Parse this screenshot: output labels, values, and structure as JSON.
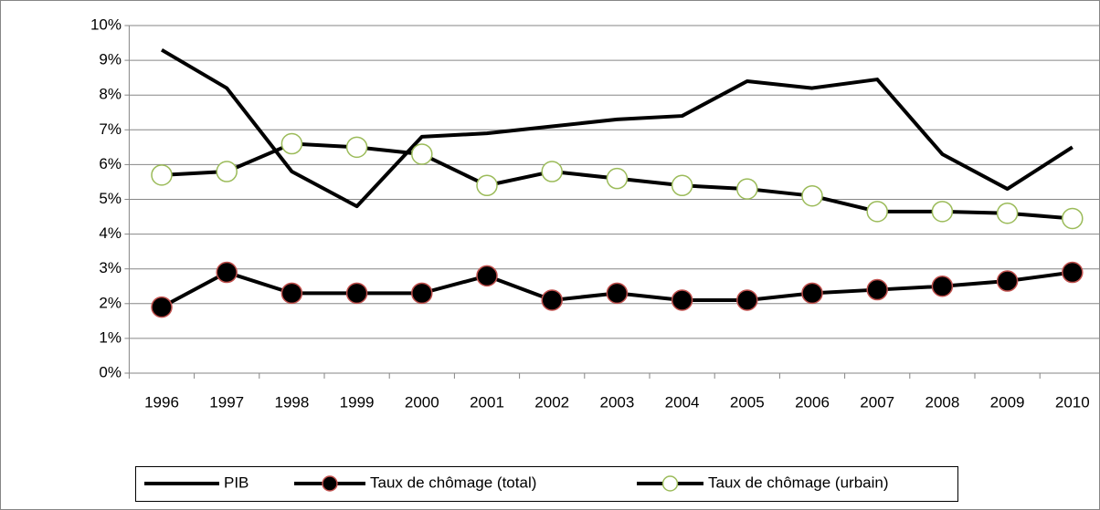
{
  "chart_data": {
    "type": "line",
    "categories": [
      "1996",
      "1997",
      "1998",
      "1999",
      "2000",
      "2001",
      "2002",
      "2003",
      "2004",
      "2005",
      "2006",
      "2007",
      "2008",
      "2009",
      "2010"
    ],
    "series": [
      {
        "name": "PIB",
        "color": "#000000",
        "marker": null,
        "values": [
          9.3,
          8.2,
          5.8,
          4.8,
          6.8,
          6.9,
          7.1,
          7.3,
          7.4,
          8.4,
          8.2,
          8.45,
          6.3,
          5.3,
          6.5
        ]
      },
      {
        "name": "Taux de chômage (total)",
        "color": "#000000",
        "marker": {
          "fill": "#000000",
          "edge": "#c0504d"
        },
        "values": [
          1.9,
          2.9,
          2.3,
          2.3,
          2.3,
          2.8,
          2.1,
          2.3,
          2.1,
          2.1,
          2.3,
          2.4,
          2.5,
          2.65,
          2.9
        ]
      },
      {
        "name": "Taux de chômage (urbain)",
        "color": "#000000",
        "marker": {
          "fill": "#ffffff",
          "edge": "#9bbb59"
        },
        "values": [
          5.7,
          5.8,
          6.6,
          6.5,
          6.3,
          5.4,
          5.8,
          5.6,
          5.4,
          5.3,
          5.1,
          4.65,
          4.65,
          4.6,
          4.45
        ]
      }
    ],
    "ylim": [
      0,
      10
    ],
    "yticks": [
      {
        "value": 0,
        "label": "0%"
      },
      {
        "value": 1,
        "label": "1%"
      },
      {
        "value": 2,
        "label": "2%"
      },
      {
        "value": 3,
        "label": "3%"
      },
      {
        "value": 4,
        "label": "4%"
      },
      {
        "value": 5,
        "label": "5%"
      },
      {
        "value": 6,
        "label": "6%"
      },
      {
        "value": 7,
        "label": "7%"
      },
      {
        "value": 8,
        "label": "8%"
      },
      {
        "value": 9,
        "label": "9%"
      },
      {
        "value": 10,
        "label": "10%"
      }
    ],
    "grid": true,
    "legend": "bottom"
  }
}
